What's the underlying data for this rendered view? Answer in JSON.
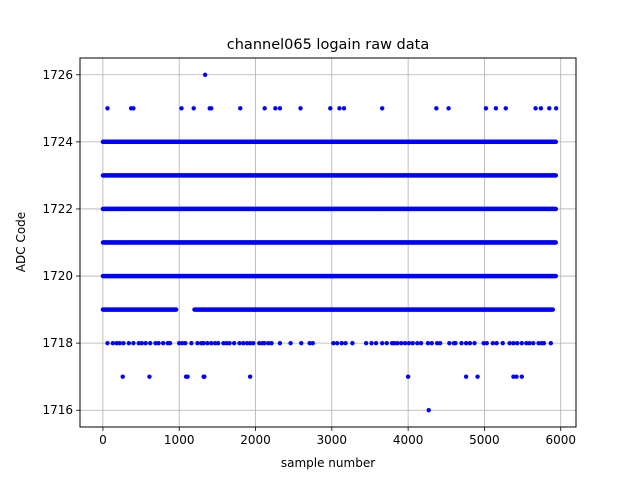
{
  "chart_data": {
    "type": "scatter",
    "title": "channel065 logain raw data",
    "xlabel": "sample number",
    "ylabel": "ADC Code",
    "xlim": [
      -300,
      6200
    ],
    "ylim": [
      1715.5,
      1726.5
    ],
    "xticks": [
      0,
      1000,
      2000,
      3000,
      4000,
      5000,
      6000
    ],
    "yticks": [
      1716,
      1718,
      1720,
      1722,
      1724,
      1726
    ],
    "xtick_labels": [
      "0",
      "1000",
      "2000",
      "3000",
      "4000",
      "5000",
      "6000"
    ],
    "ytick_labels": [
      "1716",
      "1718",
      "1720",
      "1722",
      "1724",
      "1726"
    ],
    "grid": true,
    "marker_color": "#0000ff",
    "n_samples": 5940,
    "levels": {
      "1719": {
        "x": [
          0,
          960,
          1200,
          5900
        ]
      },
      "1720": {
        "x": [
          0,
          5940
        ]
      },
      "1721": {
        "x": [
          0,
          5940
        ]
      },
      "1722": {
        "x": [
          0,
          5940
        ]
      },
      "1723": {
        "x": [
          0,
          5940
        ]
      },
      "1724": {
        "x": [
          0,
          5940
        ]
      }
    },
    "sparse": {
      "1718": [
        60,
        130,
        180,
        220,
        270,
        340,
        400,
        470,
        510,
        560,
        620,
        690,
        730,
        790,
        850,
        880,
        1000,
        1040,
        1080,
        1160,
        1240,
        1290,
        1320,
        1370,
        1420,
        1470,
        1510,
        1580,
        1620,
        1660,
        1720,
        1790,
        1840,
        1890,
        1930,
        1970,
        2050,
        2090,
        2120,
        2170,
        2210,
        2320,
        2460,
        2600,
        2710,
        2750,
        3020,
        3070,
        3130,
        3180,
        3270,
        3450,
        3520,
        3580,
        3660,
        3720,
        3790,
        3820,
        3860,
        3910,
        3960,
        4010,
        4060,
        4120,
        4170,
        4260,
        4310,
        4380,
        4420,
        4540,
        4600,
        4620,
        4700,
        4760,
        4810,
        4870,
        4990,
        5030,
        5110,
        5160,
        5240,
        5330,
        5380,
        5430,
        5490,
        5550,
        5590,
        5640,
        5710,
        5750,
        5780,
        5870
      ],
      "1717": [
        260,
        610,
        1090,
        1110,
        1320,
        1330,
        1930,
        4000,
        4760,
        4910,
        5380,
        5420,
        5490
      ],
      "1716": [
        4270
      ],
      "1725": [
        60,
        370,
        400,
        1030,
        1190,
        1400,
        1420,
        1800,
        2120,
        2260,
        2320,
        2590,
        2980,
        3100,
        3160,
        3660,
        4370,
        4530,
        5020,
        5150,
        5280,
        5670,
        5740,
        5850,
        5940
      ],
      "1726": [
        1340
      ]
    }
  }
}
